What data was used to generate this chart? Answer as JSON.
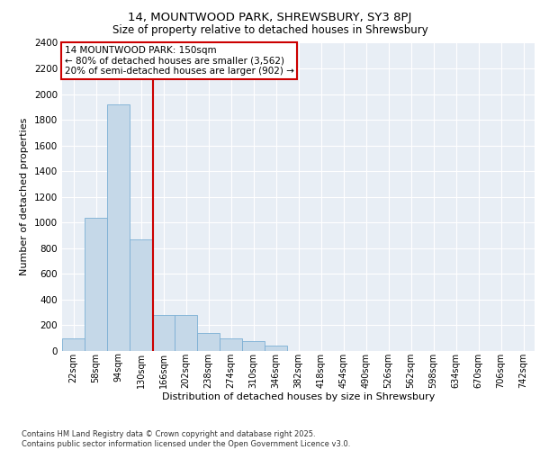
{
  "title_line1": "14, MOUNTWOOD PARK, SHREWSBURY, SY3 8PJ",
  "title_line2": "Size of property relative to detached houses in Shrewsbury",
  "xlabel": "Distribution of detached houses by size in Shrewsbury",
  "ylabel": "Number of detached properties",
  "footer_line1": "Contains HM Land Registry data © Crown copyright and database right 2025.",
  "footer_line2": "Contains public sector information licensed under the Open Government Licence v3.0.",
  "annotation_line1": "14 MOUNTWOOD PARK: 150sqm",
  "annotation_line2": "← 80% of detached houses are smaller (3,562)",
  "annotation_line3": "20% of semi-detached houses are larger (902) →",
  "property_size": 150,
  "categories": [
    "22sqm",
    "58sqm",
    "94sqm",
    "130sqm",
    "166sqm",
    "202sqm",
    "238sqm",
    "274sqm",
    "310sqm",
    "346sqm",
    "382sqm",
    "418sqm",
    "454sqm",
    "490sqm",
    "526sqm",
    "562sqm",
    "598sqm",
    "634sqm",
    "670sqm",
    "706sqm",
    "742sqm"
  ],
  "bin_edges": [
    4,
    40,
    76,
    112,
    148,
    184,
    220,
    256,
    292,
    328,
    364,
    400,
    436,
    472,
    508,
    544,
    580,
    616,
    652,
    688,
    724,
    760
  ],
  "values": [
    100,
    1040,
    1920,
    870,
    280,
    280,
    140,
    100,
    80,
    40,
    0,
    0,
    0,
    0,
    0,
    0,
    0,
    0,
    0,
    0,
    0
  ],
  "bar_color": "#c5d8e8",
  "bar_edge_color": "#7bafd4",
  "vline_color": "#cc0000",
  "vline_x": 150,
  "annotation_box_color": "#cc0000",
  "plot_background": "#e8eef5",
  "ylim": [
    0,
    2400
  ],
  "yticks": [
    0,
    200,
    400,
    600,
    800,
    1000,
    1200,
    1400,
    1600,
    1800,
    2000,
    2200,
    2400
  ]
}
